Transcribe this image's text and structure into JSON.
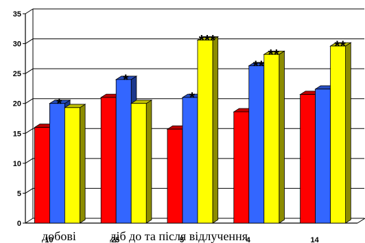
{
  "chart_data": {
    "type": "bar",
    "style": "3d-clustered",
    "categories": [
      "10",
      "25",
      "5",
      "4",
      "14"
    ],
    "series": [
      {
        "color": "#ff0000",
        "values": [
          16.0,
          21.0,
          15.7,
          18.6,
          21.5
        ]
      },
      {
        "color": "#3366ff",
        "values": [
          20.0,
          24.0,
          21.0,
          26.3,
          22.4
        ]
      },
      {
        "color": "#ffff00",
        "values": [
          19.3,
          20.0,
          30.6,
          28.2,
          29.6
        ]
      }
    ],
    "annotations": [
      {
        "category": "10",
        "series": 1,
        "text": "*"
      },
      {
        "category": "25",
        "series": 1,
        "text": "*"
      },
      {
        "category": "5",
        "series": 1,
        "text": "*"
      },
      {
        "category": "5",
        "series": 2,
        "text": "***"
      },
      {
        "category": "4",
        "series": 1,
        "text": "**"
      },
      {
        "category": "4",
        "series": 2,
        "text": "**"
      },
      {
        "category": "14",
        "series": 2,
        "text": "**"
      }
    ],
    "xlabel": "добові           діб до та після відлучення",
    "ylabel": "",
    "ylim": [
      0,
      35
    ],
    "yticks": [
      0,
      5,
      10,
      15,
      20,
      25,
      30,
      35
    ],
    "grid": true,
    "legend": "none"
  }
}
